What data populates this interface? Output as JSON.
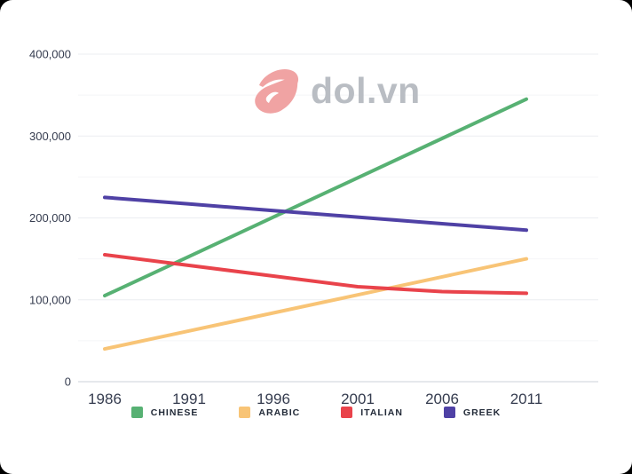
{
  "watermark": {
    "text": "dol.vn",
    "icon_color": "#f0a3a3",
    "text_color": "#b9bdc3"
  },
  "chart_data": {
    "type": "line",
    "x": [
      "1986",
      "1991",
      "1996",
      "2001",
      "2006",
      "2011"
    ],
    "series": [
      {
        "name": "CHINESE",
        "color": "#57b173",
        "values": [
          105000,
          153000,
          201000,
          249000,
          297000,
          345000
        ]
      },
      {
        "name": "ARABIC",
        "color": "#f8c476",
        "values": [
          40000,
          62000,
          84000,
          106000,
          128000,
          150000
        ]
      },
      {
        "name": "ITALIAN",
        "color": "#e9434b",
        "values": [
          155000,
          142000,
          129000,
          116000,
          110000,
          108000
        ]
      },
      {
        "name": "GREEK",
        "color": "#4f41a5",
        "values": [
          225000,
          217000,
          209000,
          201000,
          193000,
          185000
        ]
      }
    ],
    "title": "",
    "xlabel": "",
    "ylabel": "",
    "ylim": [
      0,
      400000
    ],
    "y_major_step": 100000,
    "y_minor_step": 50000,
    "y_tick_labels": [
      "0",
      "100,000",
      "200,000",
      "300,000",
      "400,000"
    ],
    "grid": true,
    "legend_position": "bottom",
    "axis_text_color": "#353c4f"
  }
}
